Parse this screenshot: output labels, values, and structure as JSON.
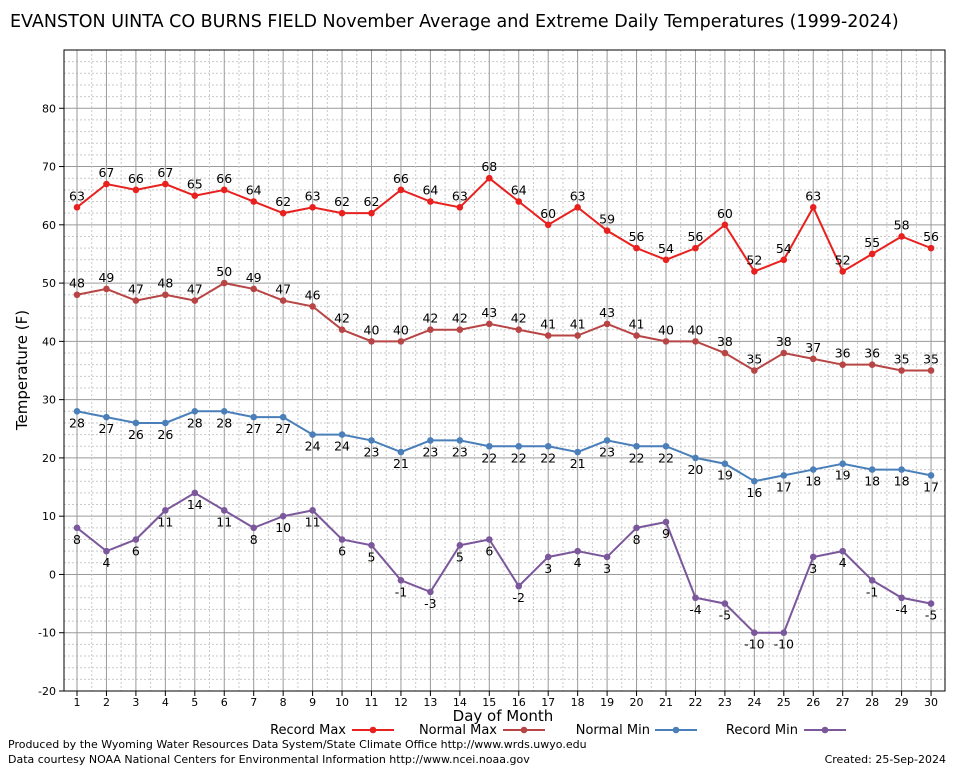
{
  "chart_data": {
    "type": "line",
    "title": "EVANSTON UINTA CO BURNS FIELD November Average and Extreme Daily Temperatures (1999-2024)",
    "xlabel": "Day of Month",
    "ylabel": "Temperature (F)",
    "ylim": [
      -20,
      90
    ],
    "y_ticks": [
      -20,
      -10,
      0,
      10,
      20,
      30,
      40,
      50,
      60,
      70,
      80
    ],
    "grid": true,
    "x": [
      1,
      2,
      3,
      4,
      5,
      6,
      7,
      8,
      9,
      10,
      11,
      12,
      13,
      14,
      15,
      16,
      17,
      18,
      19,
      20,
      21,
      22,
      23,
      24,
      25,
      26,
      27,
      28,
      29,
      30
    ],
    "series": [
      {
        "name": "Record Max",
        "color": "#e8201e",
        "values": [
          63,
          67,
          66,
          67,
          65,
          66,
          64,
          62,
          63,
          62,
          62,
          66,
          64,
          63,
          68,
          64,
          60,
          63,
          59,
          56,
          54,
          56,
          60,
          52,
          54,
          63,
          52,
          55,
          58,
          56
        ]
      },
      {
        "name": "Normal Max",
        "color": "#b84545",
        "values": [
          48,
          49,
          47,
          48,
          47,
          50,
          49,
          47,
          46,
          42,
          40,
          40,
          42,
          42,
          43,
          42,
          41,
          41,
          43,
          41,
          40,
          40,
          38,
          35,
          38,
          37,
          36,
          36,
          35,
          35
        ]
      },
      {
        "name": "Normal Min",
        "color": "#4a7fba",
        "values": [
          28,
          27,
          26,
          26,
          28,
          28,
          27,
          27,
          24,
          24,
          23,
          21,
          23,
          23,
          22,
          22,
          22,
          21,
          23,
          22,
          22,
          20,
          19,
          16,
          17,
          18,
          19,
          18,
          18,
          17
        ]
      },
      {
        "name": "Record Min",
        "color": "#7b579b",
        "values": [
          8,
          4,
          6,
          11,
          14,
          11,
          8,
          10,
          11,
          6,
          5,
          -1,
          -3,
          5,
          6,
          -2,
          3,
          4,
          3,
          8,
          9,
          -4,
          -5,
          -10,
          -10,
          3,
          4,
          -1,
          -4,
          -5
        ]
      }
    ]
  },
  "footer": {
    "produced_by": "Produced by the Wyoming Water Resources Data System/State Climate Office http://www.wrds.uwyo.edu",
    "data_courtesy": "Data courtesy NOAA National Centers for Environmental Information http://www.ncei.noaa.gov",
    "created": "Created:  25-Sep-2024"
  }
}
